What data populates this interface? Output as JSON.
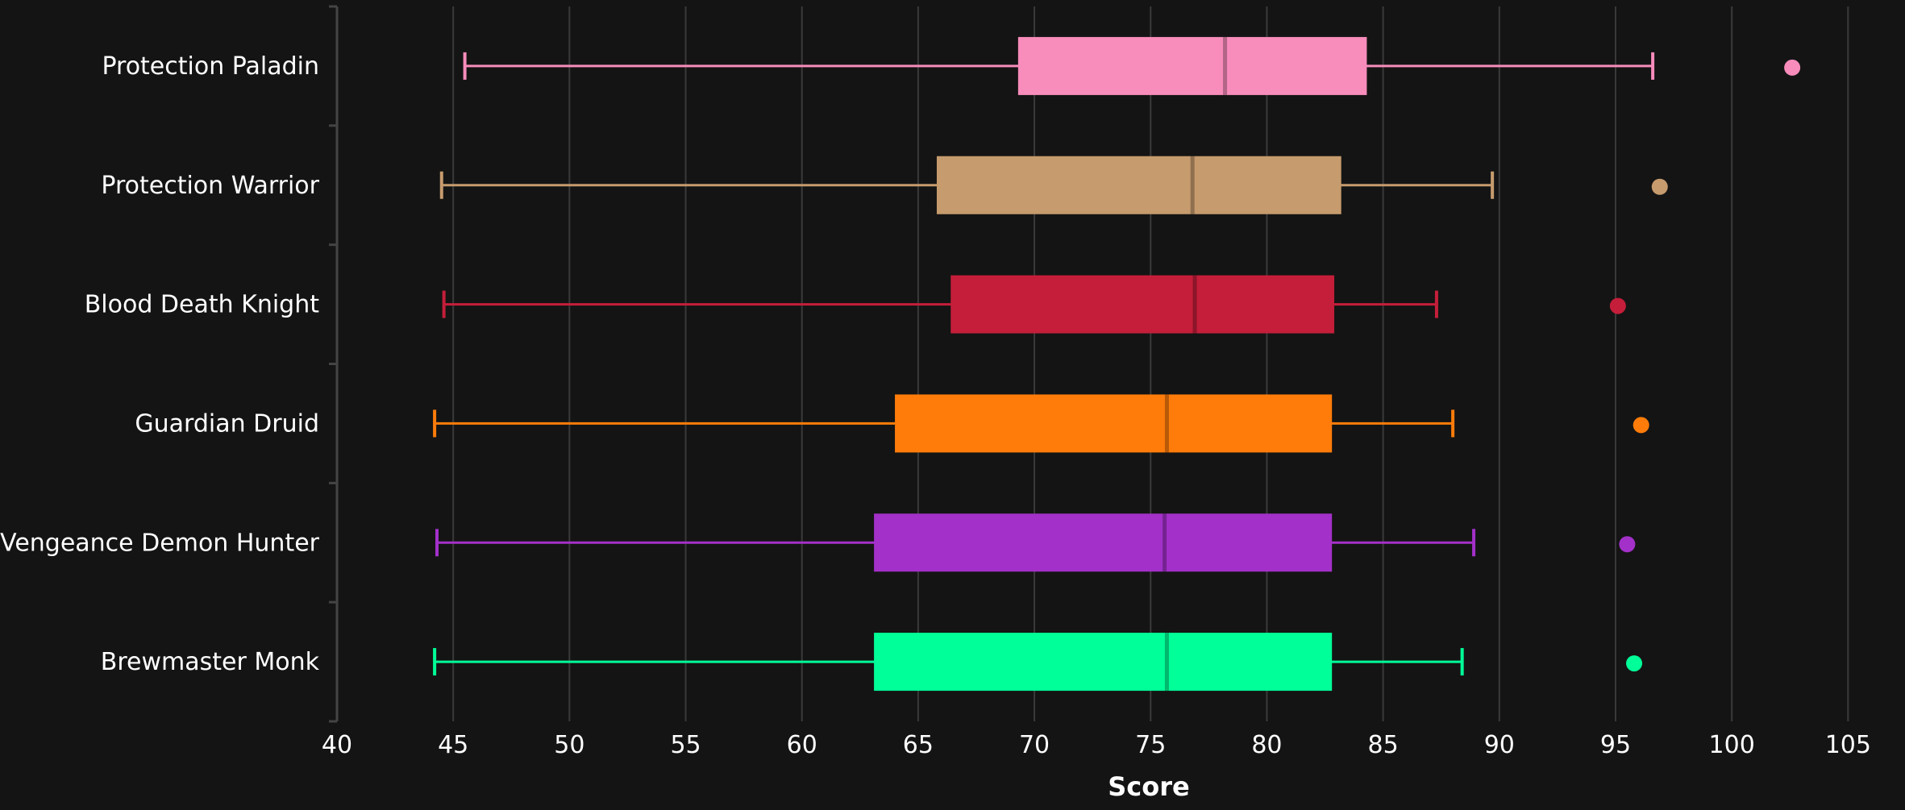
{
  "chart_data": {
    "type": "box",
    "xlabel": "Score",
    "ylabel": "",
    "title": "",
    "xlim": [
      40,
      107
    ],
    "xticks": [
      40,
      45,
      50,
      55,
      60,
      65,
      70,
      75,
      80,
      85,
      90,
      95,
      100,
      105
    ],
    "grid": "vertical",
    "legend": "none",
    "series": [
      {
        "name": "Protection Paladin",
        "color": "#f88cbb",
        "whisker_low": 45.5,
        "q1": 69.3,
        "median": 78.2,
        "q3": 84.3,
        "whisker_high": 96.6,
        "outliers": [
          102.6
        ]
      },
      {
        "name": "Protection Warrior",
        "color": "#c69b6d",
        "whisker_low": 44.5,
        "q1": 65.8,
        "median": 76.8,
        "q3": 83.2,
        "whisker_high": 89.7,
        "outliers": [
          96.9
        ]
      },
      {
        "name": "Blood Death Knight",
        "color": "#c41e3a",
        "whisker_low": 44.6,
        "q1": 66.4,
        "median": 76.9,
        "q3": 82.9,
        "whisker_high": 87.3,
        "outliers": [
          95.1
        ]
      },
      {
        "name": "Guardian Druid",
        "color": "#ff7c0a",
        "whisker_low": 44.2,
        "q1": 64.0,
        "median": 75.7,
        "q3": 82.8,
        "whisker_high": 88.0,
        "outliers": [
          96.1
        ]
      },
      {
        "name": "Vengeance Demon Hunter",
        "color": "#a330c9",
        "whisker_low": 44.3,
        "q1": 63.1,
        "median": 75.6,
        "q3": 82.8,
        "whisker_high": 88.9,
        "outliers": [
          95.5
        ]
      },
      {
        "name": "Brewmaster Monk",
        "color": "#00ff98",
        "whisker_low": 44.2,
        "q1": 63.1,
        "median": 75.7,
        "q3": 82.8,
        "whisker_high": 88.4,
        "outliers": [
          95.8
        ]
      }
    ]
  }
}
